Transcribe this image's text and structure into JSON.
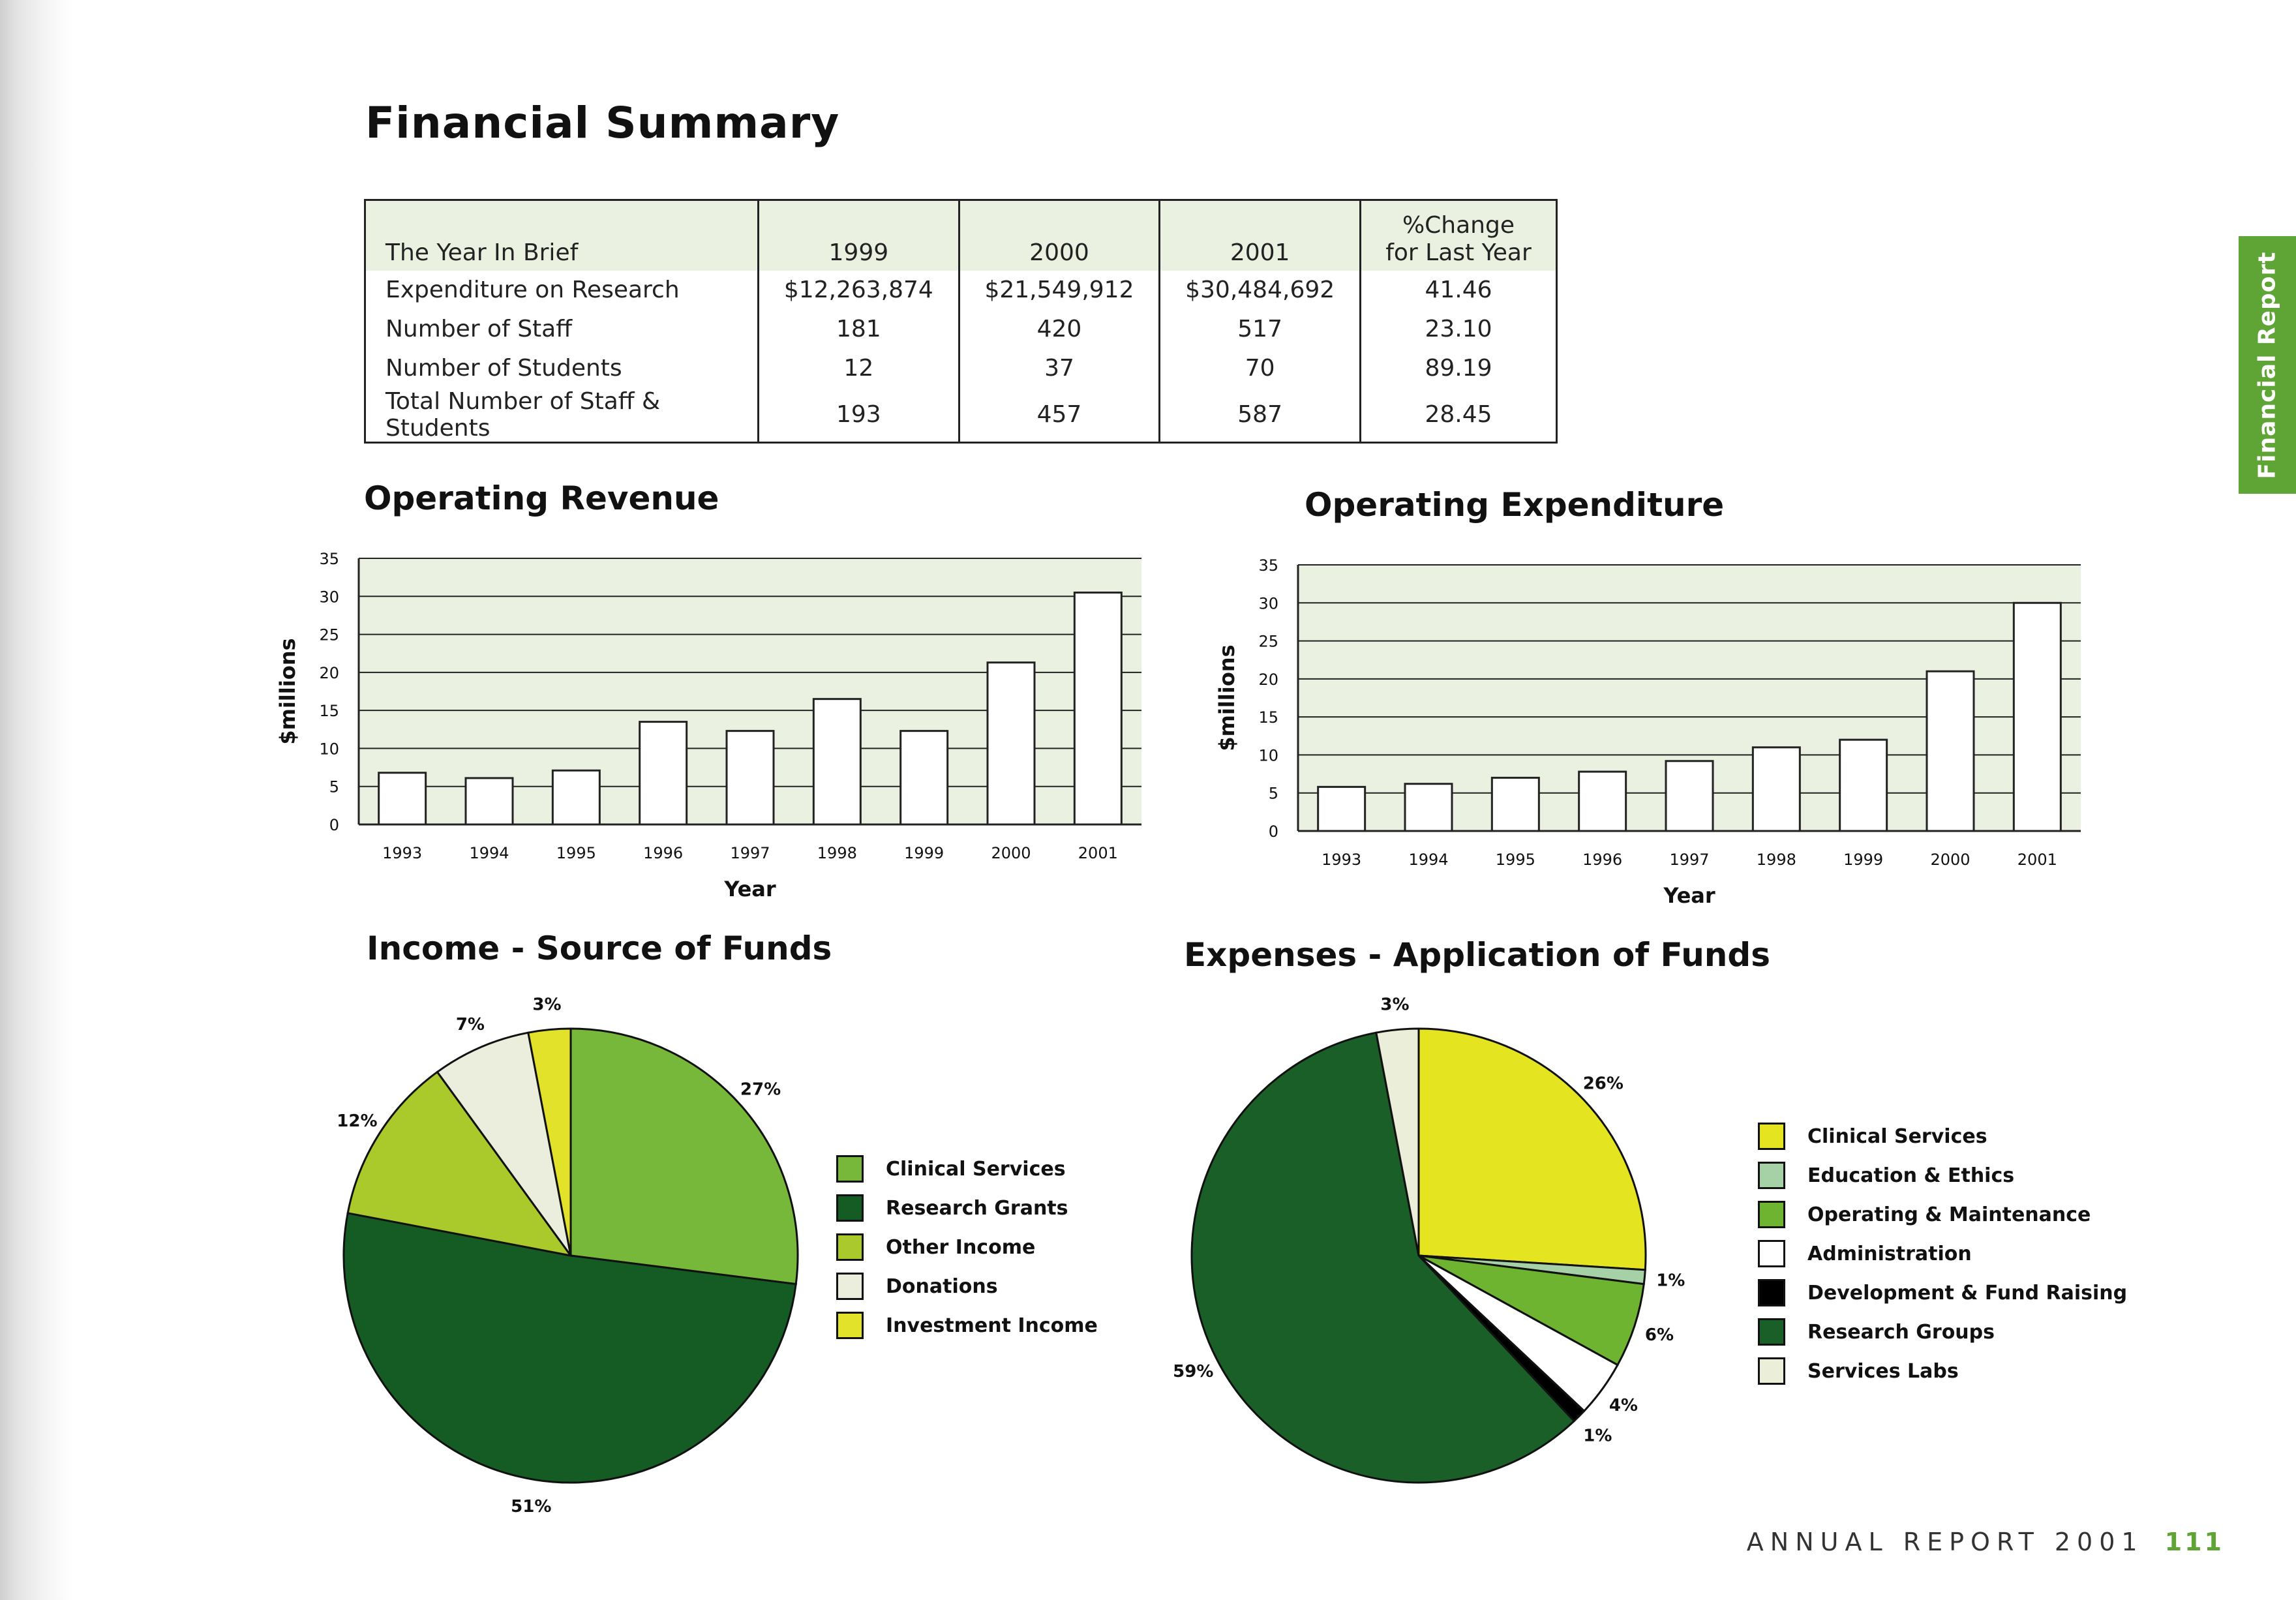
{
  "page_title": "Financial Summary",
  "side_tab": "Financial Report",
  "table": {
    "headers": [
      "The Year In Brief",
      "1999",
      "2000",
      "2001",
      "%Change\nfor Last Year"
    ],
    "rows": [
      [
        "Expenditure on Research",
        "$12,263,874",
        "$21,549,912",
        "$30,484,692",
        "41.46"
      ],
      [
        "Number of Staff",
        "181",
        "420",
        "517",
        "23.10"
      ],
      [
        "Number of Students",
        "12",
        "37",
        "70",
        "89.19"
      ],
      [
        "Total Number of Staff & Students",
        "193",
        "457",
        "587",
        "28.45"
      ]
    ]
  },
  "colors": {
    "accent": "#5ea536",
    "plot_bg": "#eaf1e1",
    "clinical_services": "#77b83a",
    "research_grants": "#155c24",
    "other_income": "#a9ca2a",
    "donations": "#ebeedc",
    "investment_income": "#e2e22a",
    "exp_clinical_services": "#e4e420",
    "education_ethics": "#a6d1a6",
    "operating_maintenance": "#6fb430",
    "administration": "#ffffff",
    "development_fund_raising": "#000000",
    "research_groups": "#1a5e28",
    "services_labs": "#ebeed8"
  },
  "chart_data": [
    {
      "type": "bar",
      "title": "Operating Revenue",
      "categories": [
        "1993",
        "1994",
        "1995",
        "1996",
        "1997",
        "1998",
        "1999",
        "2000",
        "2001"
      ],
      "values": [
        6.8,
        6.1,
        7.1,
        13.5,
        12.3,
        16.5,
        12.3,
        21.3,
        30.5
      ],
      "xlabel": "Year",
      "ylabel": "$millions",
      "ylim": [
        0,
        35
      ],
      "yticks": [
        "0",
        "5",
        "10",
        "15",
        "20",
        "25",
        "30",
        "35"
      ],
      "grid": true
    },
    {
      "type": "bar",
      "title": "Operating Expenditure",
      "categories": [
        "1993",
        "1994",
        "1995",
        "1996",
        "1997",
        "1998",
        "1999",
        "2000",
        "2001"
      ],
      "values": [
        5.8,
        6.2,
        7.0,
        7.8,
        9.2,
        11.0,
        12.0,
        21.0,
        30.0
      ],
      "xlabel": "Year",
      "ylabel": "$millions",
      "ylim": [
        0,
        35
      ],
      "yticks": [
        "0",
        "5",
        "10",
        "15",
        "20",
        "25",
        "30",
        "35"
      ],
      "grid": true
    },
    {
      "type": "pie",
      "title": "Income - Source of Funds",
      "labels": [
        "Clinical Services",
        "Research Grants",
        "Other Income",
        "Donations",
        "Investment Income"
      ],
      "values": [
        27,
        51,
        12,
        7,
        3
      ],
      "value_labels": [
        "27%",
        "51%",
        "12%",
        "7%",
        "3%"
      ],
      "color_keys": [
        "clinical_services",
        "research_grants",
        "other_income",
        "donations",
        "investment_income"
      ]
    },
    {
      "type": "pie",
      "title": "Expenses - Application of Funds",
      "labels": [
        "Clinical Services",
        "Education & Ethics",
        "Operating & Maintenance",
        "Administration",
        "Development & Fund Raising",
        "Research Groups",
        "Services Labs"
      ],
      "values": [
        26,
        1,
        6,
        4,
        1,
        59,
        3
      ],
      "value_labels": [
        "26%",
        "1%",
        "6%",
        "4%",
        "1%",
        "59%",
        "3%"
      ],
      "color_keys": [
        "exp_clinical_services",
        "education_ethics",
        "operating_maintenance",
        "administration",
        "development_fund_raising",
        "research_groups",
        "services_labs"
      ]
    }
  ],
  "footer": {
    "text": "ANNUAL REPORT 2001",
    "page_number": "111"
  }
}
